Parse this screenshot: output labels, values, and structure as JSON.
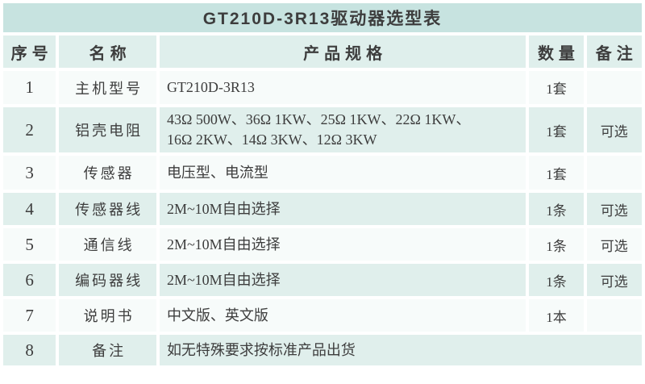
{
  "table": {
    "title": "GT210D-3R13驱动器选型表",
    "headers": {
      "no": "序号",
      "name": "名称",
      "spec": "产品规格",
      "qty": "数量",
      "note": "备注"
    },
    "rows": [
      {
        "no": "1",
        "name": "主机型号",
        "spec": "GT210D-3R13",
        "qty": "1套",
        "note": ""
      },
      {
        "no": "2",
        "name": "铝壳电阻",
        "spec_lines": [
          "43Ω 500W、36Ω 1KW、25Ω 1KW、22Ω 1KW、",
          "16Ω 2KW、14Ω 3KW、12Ω 3KW"
        ],
        "qty": "1套",
        "note": "可选"
      },
      {
        "no": "3",
        "name": "传感器",
        "spec": "电压型、电流型",
        "qty": "1套",
        "note": ""
      },
      {
        "no": "4",
        "name": "传感器线",
        "spec": "2M~10M自由选择",
        "qty": "1条",
        "note": "可选"
      },
      {
        "no": "5",
        "name": "通信线",
        "spec": "2M~10M自由选择",
        "qty": "1条",
        "note": "可选"
      },
      {
        "no": "6",
        "name": "编码器线",
        "spec": "2M~10M自由选择",
        "qty": "1条",
        "note": "可选"
      },
      {
        "no": "7",
        "name": "说明书",
        "spec": "中文版、英文版",
        "qty": "1本",
        "note": ""
      },
      {
        "no": "8",
        "name": "备注",
        "spec": "如无特殊要求按标准产品出货"
      }
    ]
  },
  "colors": {
    "title-bg": "#c7e3e0",
    "header-bg": "#dfefec",
    "row-tint-bg": "#e0efec",
    "row-plain-bg": "#f7fbfa",
    "grid-bg": "#ffffff",
    "text": "#3d3d3d"
  }
}
